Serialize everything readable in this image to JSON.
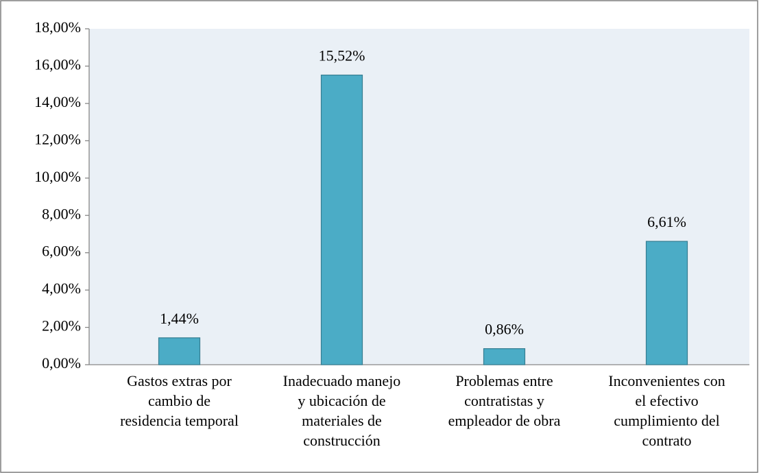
{
  "chart_data": {
    "type": "bar",
    "categories": [
      "Gastos extras por\ncambio de\nresidencia temporal",
      "Inadecuado manejo\ny ubicación de\nmateriales de\nconstrucción",
      "Problemas entre\ncontratistas y\nempleador de obra",
      "Inconvenientes con\nel efectivo\ncumplimiento del\ncontrato"
    ],
    "values": [
      1.44,
      15.52,
      0.86,
      6.61
    ],
    "value_labels": [
      "1,44%",
      "15,52%",
      "0,86%",
      "6,61%"
    ],
    "color": "#4bacc6",
    "ylim": [
      0,
      18
    ],
    "yticks": [
      {
        "value": 0,
        "label": "0,00%"
      },
      {
        "value": 2,
        "label": "2,00%"
      },
      {
        "value": 4,
        "label": "4,00%"
      },
      {
        "value": 6,
        "label": "6,00%"
      },
      {
        "value": 8,
        "label": "8,00%"
      },
      {
        "value": 10,
        "label": "10,00%"
      },
      {
        "value": 12,
        "label": "12,00%"
      },
      {
        "value": 14,
        "label": "14,00%"
      },
      {
        "value": 16,
        "label": "16,00%"
      },
      {
        "value": 18,
        "label": "18,00%"
      }
    ],
    "grid": false
  }
}
